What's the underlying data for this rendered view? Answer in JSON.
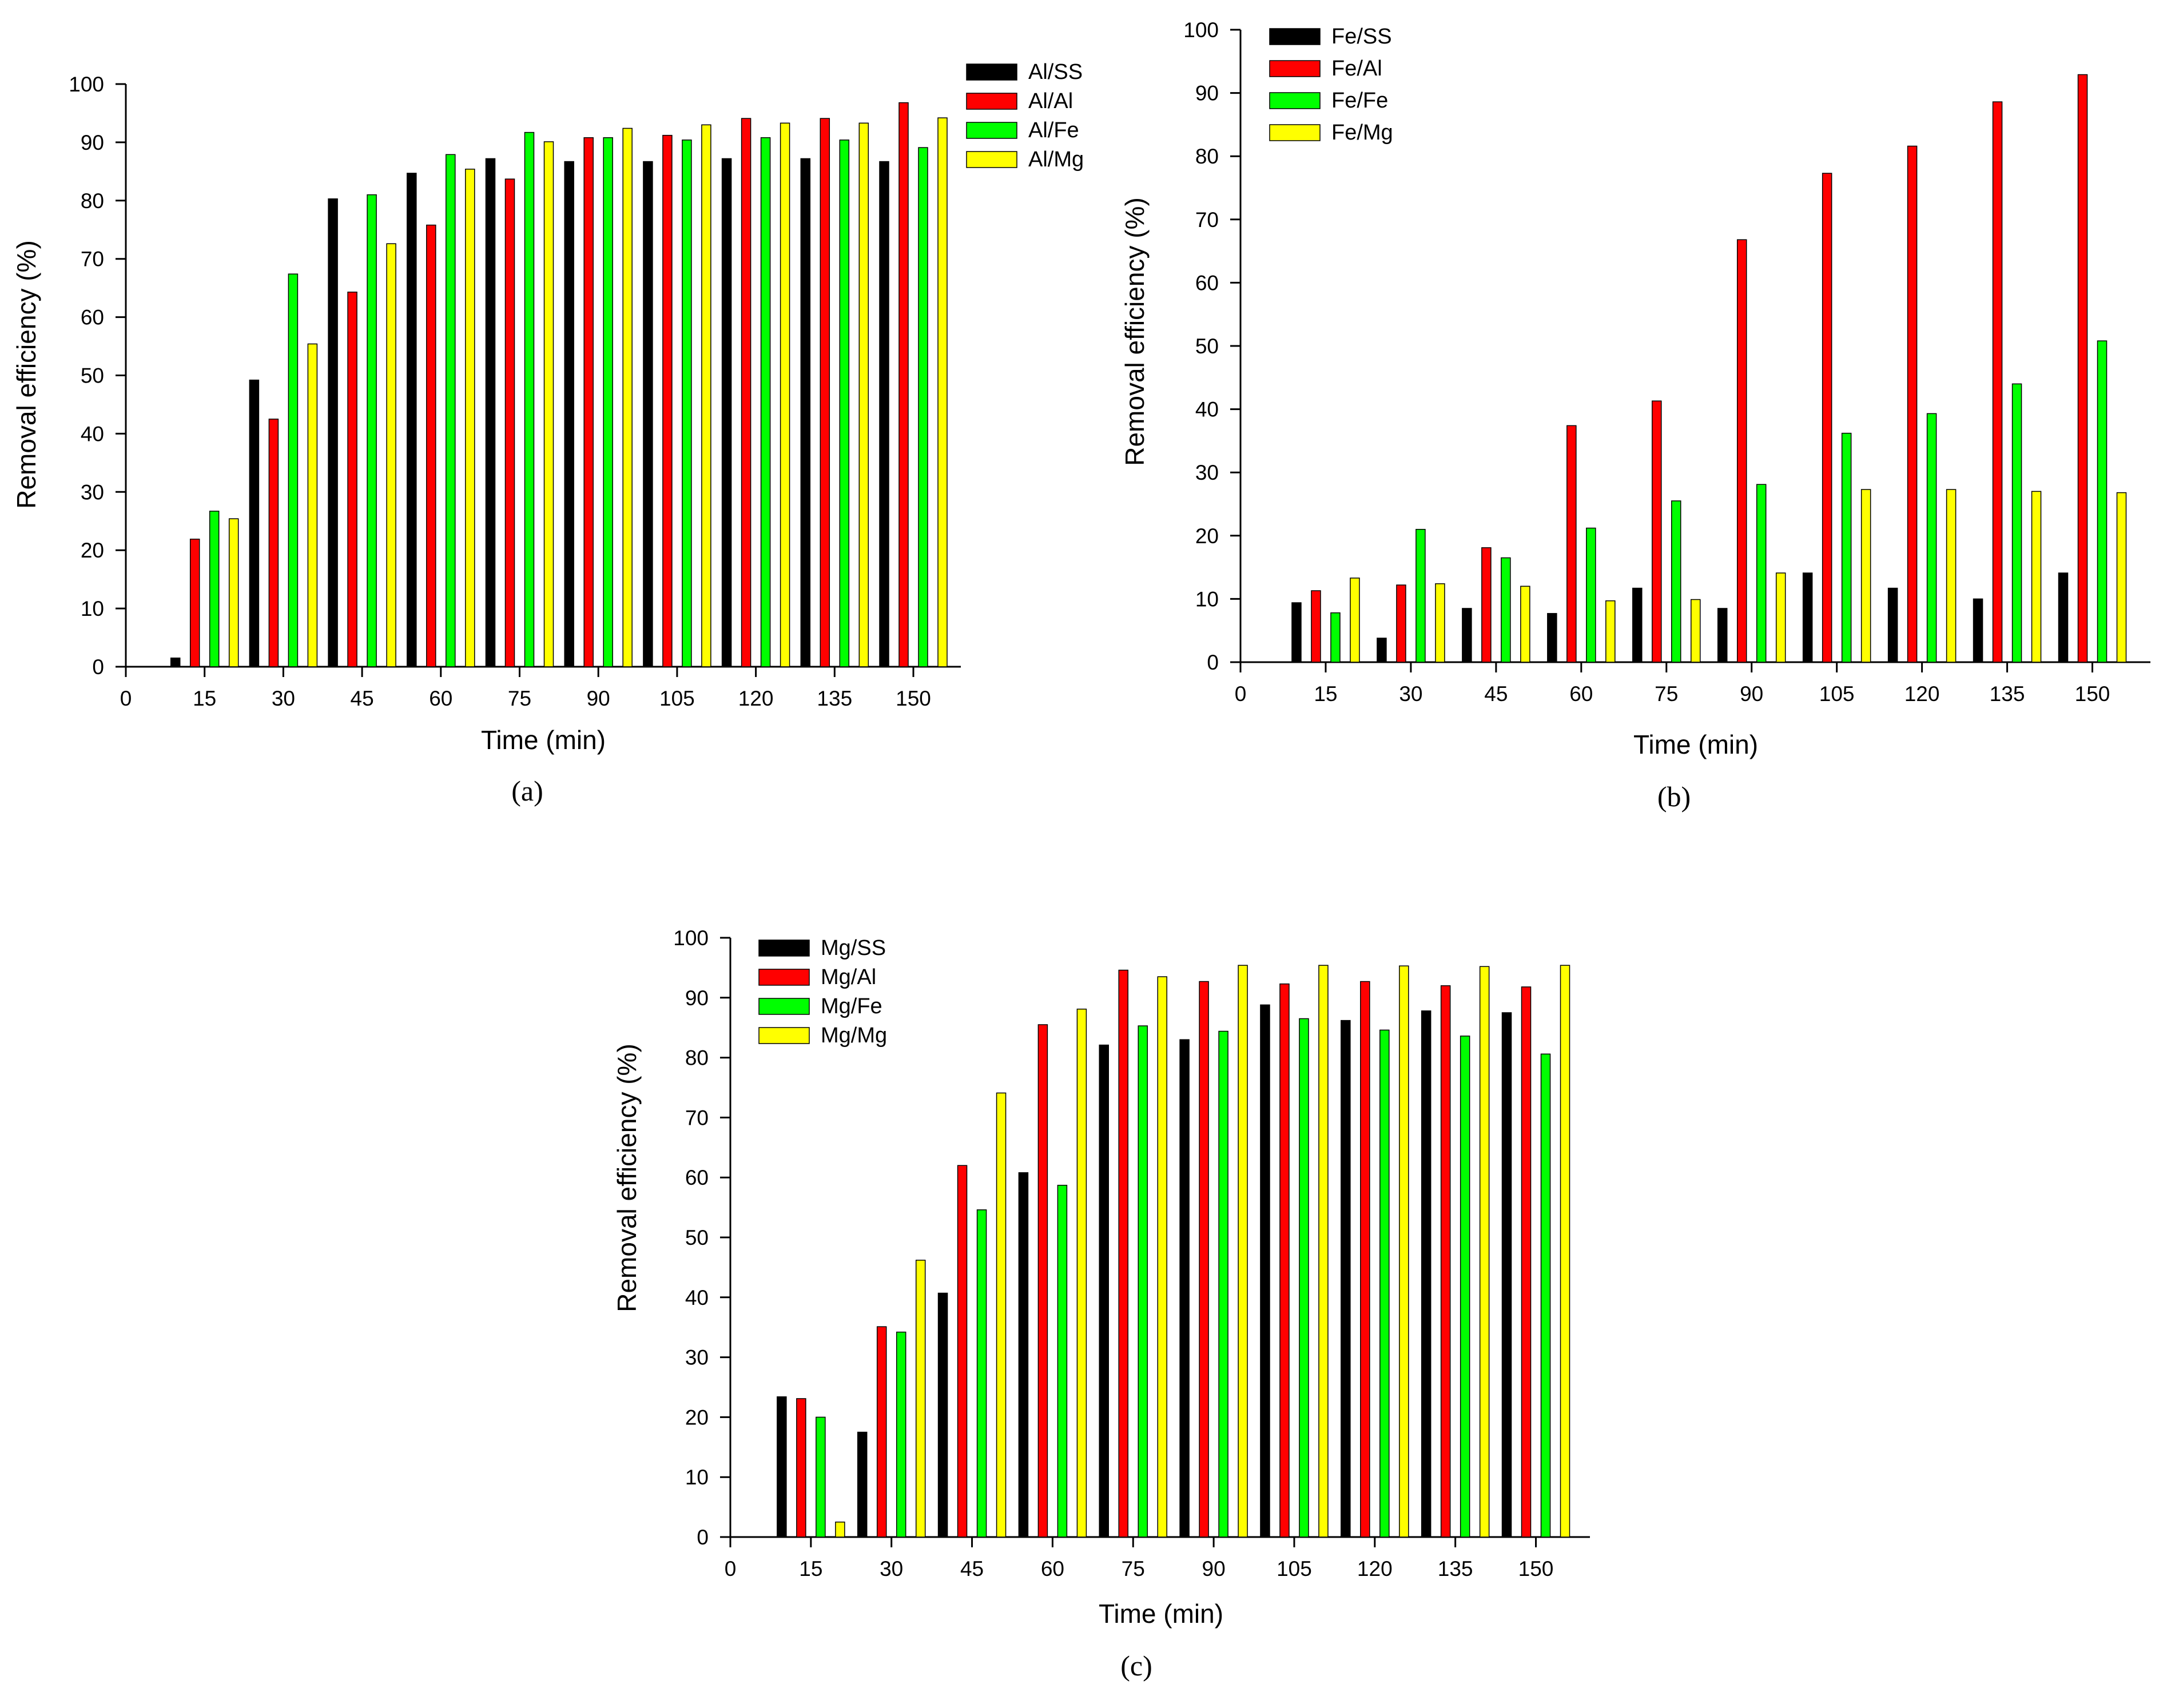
{
  "colors": {
    "Black": "#000000",
    "Red": "#ff0000",
    "Green": "#00ff00",
    "Yellow": "#ffff00",
    "Axis": "#000000"
  },
  "chart_data": [
    {
      "id": "a",
      "type": "bar",
      "caption": "(a)",
      "xlabel": "Time (min)",
      "ylabel": "Removal efficiency (%)",
      "x_ticks": [
        "0",
        "15",
        "30",
        "45",
        "60",
        "75",
        "90",
        "105",
        "120",
        "135",
        "150"
      ],
      "y_ticks": [
        "0",
        "10",
        "20",
        "30",
        "40",
        "50",
        "60",
        "70",
        "80",
        "90",
        "100"
      ],
      "ylim": [
        0,
        100
      ],
      "categories": [
        "15",
        "30",
        "45",
        "60",
        "75",
        "90",
        "105",
        "120",
        "135",
        "150"
      ],
      "legend_position": "top-right",
      "series": [
        {
          "name": "Al/SS",
          "color": "#000000",
          "values": [
            1.5,
            49.2,
            80.3,
            84.7,
            87.2,
            86.7,
            86.7,
            87.2,
            87.2,
            86.7
          ]
        },
        {
          "name": "Al/Al",
          "color": "#ff0000",
          "values": [
            21.9,
            42.5,
            64.3,
            75.8,
            83.7,
            90.8,
            91.2,
            94.1,
            94.1,
            96.8
          ]
        },
        {
          "name": "Al/Fe",
          "color": "#00ff00",
          "values": [
            26.7,
            67.4,
            81.0,
            87.9,
            91.7,
            90.8,
            90.4,
            90.8,
            90.4,
            89.1
          ]
        },
        {
          "name": "Al/Mg",
          "color": "#ffff00",
          "values": [
            25.4,
            55.4,
            72.6,
            85.4,
            90.1,
            92.4,
            93.0,
            93.3,
            93.3,
            94.2
          ]
        }
      ]
    },
    {
      "id": "b",
      "type": "bar",
      "caption": "(b)",
      "xlabel": "Time (min)",
      "ylabel": "Removal efficiency (%)",
      "x_ticks": [
        "0",
        "15",
        "30",
        "45",
        "60",
        "75",
        "90",
        "105",
        "120",
        "135",
        "150"
      ],
      "y_ticks": [
        "0",
        "10",
        "20",
        "30",
        "40",
        "50",
        "60",
        "70",
        "80",
        "90",
        "100"
      ],
      "ylim": [
        0,
        100
      ],
      "categories": [
        "15",
        "30",
        "45",
        "60",
        "75",
        "90",
        "105",
        "120",
        "135",
        "150"
      ],
      "legend_position": "top-left",
      "series": [
        {
          "name": "Fe/SS",
          "color": "#000000",
          "values": [
            9.4,
            3.8,
            8.5,
            7.7,
            11.7,
            8.5,
            14.1,
            11.7,
            10.0,
            14.1
          ]
        },
        {
          "name": "Fe/Al",
          "color": "#ff0000",
          "values": [
            11.3,
            12.2,
            18.1,
            37.4,
            41.3,
            66.8,
            77.3,
            81.6,
            88.6,
            92.9
          ]
        },
        {
          "name": "Fe/Fe",
          "color": "#00ff00",
          "values": [
            7.8,
            21.0,
            16.5,
            21.2,
            25.5,
            28.1,
            36.2,
            39.3,
            44.0,
            50.8
          ]
        },
        {
          "name": "Fe/Mg",
          "color": "#ffff00",
          "values": [
            13.3,
            12.4,
            12.0,
            9.7,
            9.9,
            14.1,
            27.3,
            27.3,
            27.0,
            26.8
          ]
        }
      ]
    },
    {
      "id": "c",
      "type": "bar",
      "caption": "(c)",
      "xlabel": "Time (min)",
      "ylabel": "Removal efficiency (%)",
      "x_ticks": [
        "0",
        "15",
        "30",
        "45",
        "60",
        "75",
        "90",
        "105",
        "120",
        "135",
        "150"
      ],
      "y_ticks": [
        "0",
        "10",
        "20",
        "30",
        "40",
        "50",
        "60",
        "70",
        "80",
        "90",
        "100"
      ],
      "ylim": [
        0,
        100
      ],
      "categories": [
        "15",
        "30",
        "45",
        "60",
        "75",
        "90",
        "105",
        "120",
        "135",
        "150"
      ],
      "legend_position": "top-left",
      "series": [
        {
          "name": "Mg/SS",
          "color": "#000000",
          "values": [
            23.4,
            17.5,
            40.7,
            60.8,
            82.1,
            83.0,
            88.8,
            86.2,
            87.8,
            87.5
          ]
        },
        {
          "name": "Mg/Al",
          "color": "#ff0000",
          "values": [
            23.1,
            35.1,
            62.0,
            85.5,
            94.6,
            92.7,
            92.3,
            92.7,
            92.0,
            91.8
          ]
        },
        {
          "name": "Mg/Fe",
          "color": "#00ff00",
          "values": [
            20.0,
            34.2,
            54.6,
            58.7,
            85.3,
            84.4,
            86.5,
            84.6,
            83.6,
            80.6
          ]
        },
        {
          "name": "Mg/Mg",
          "color": "#ffff00",
          "values": [
            2.5,
            46.2,
            74.1,
            88.1,
            93.5,
            95.4,
            95.4,
            95.3,
            95.2,
            95.4
          ]
        }
      ]
    }
  ]
}
